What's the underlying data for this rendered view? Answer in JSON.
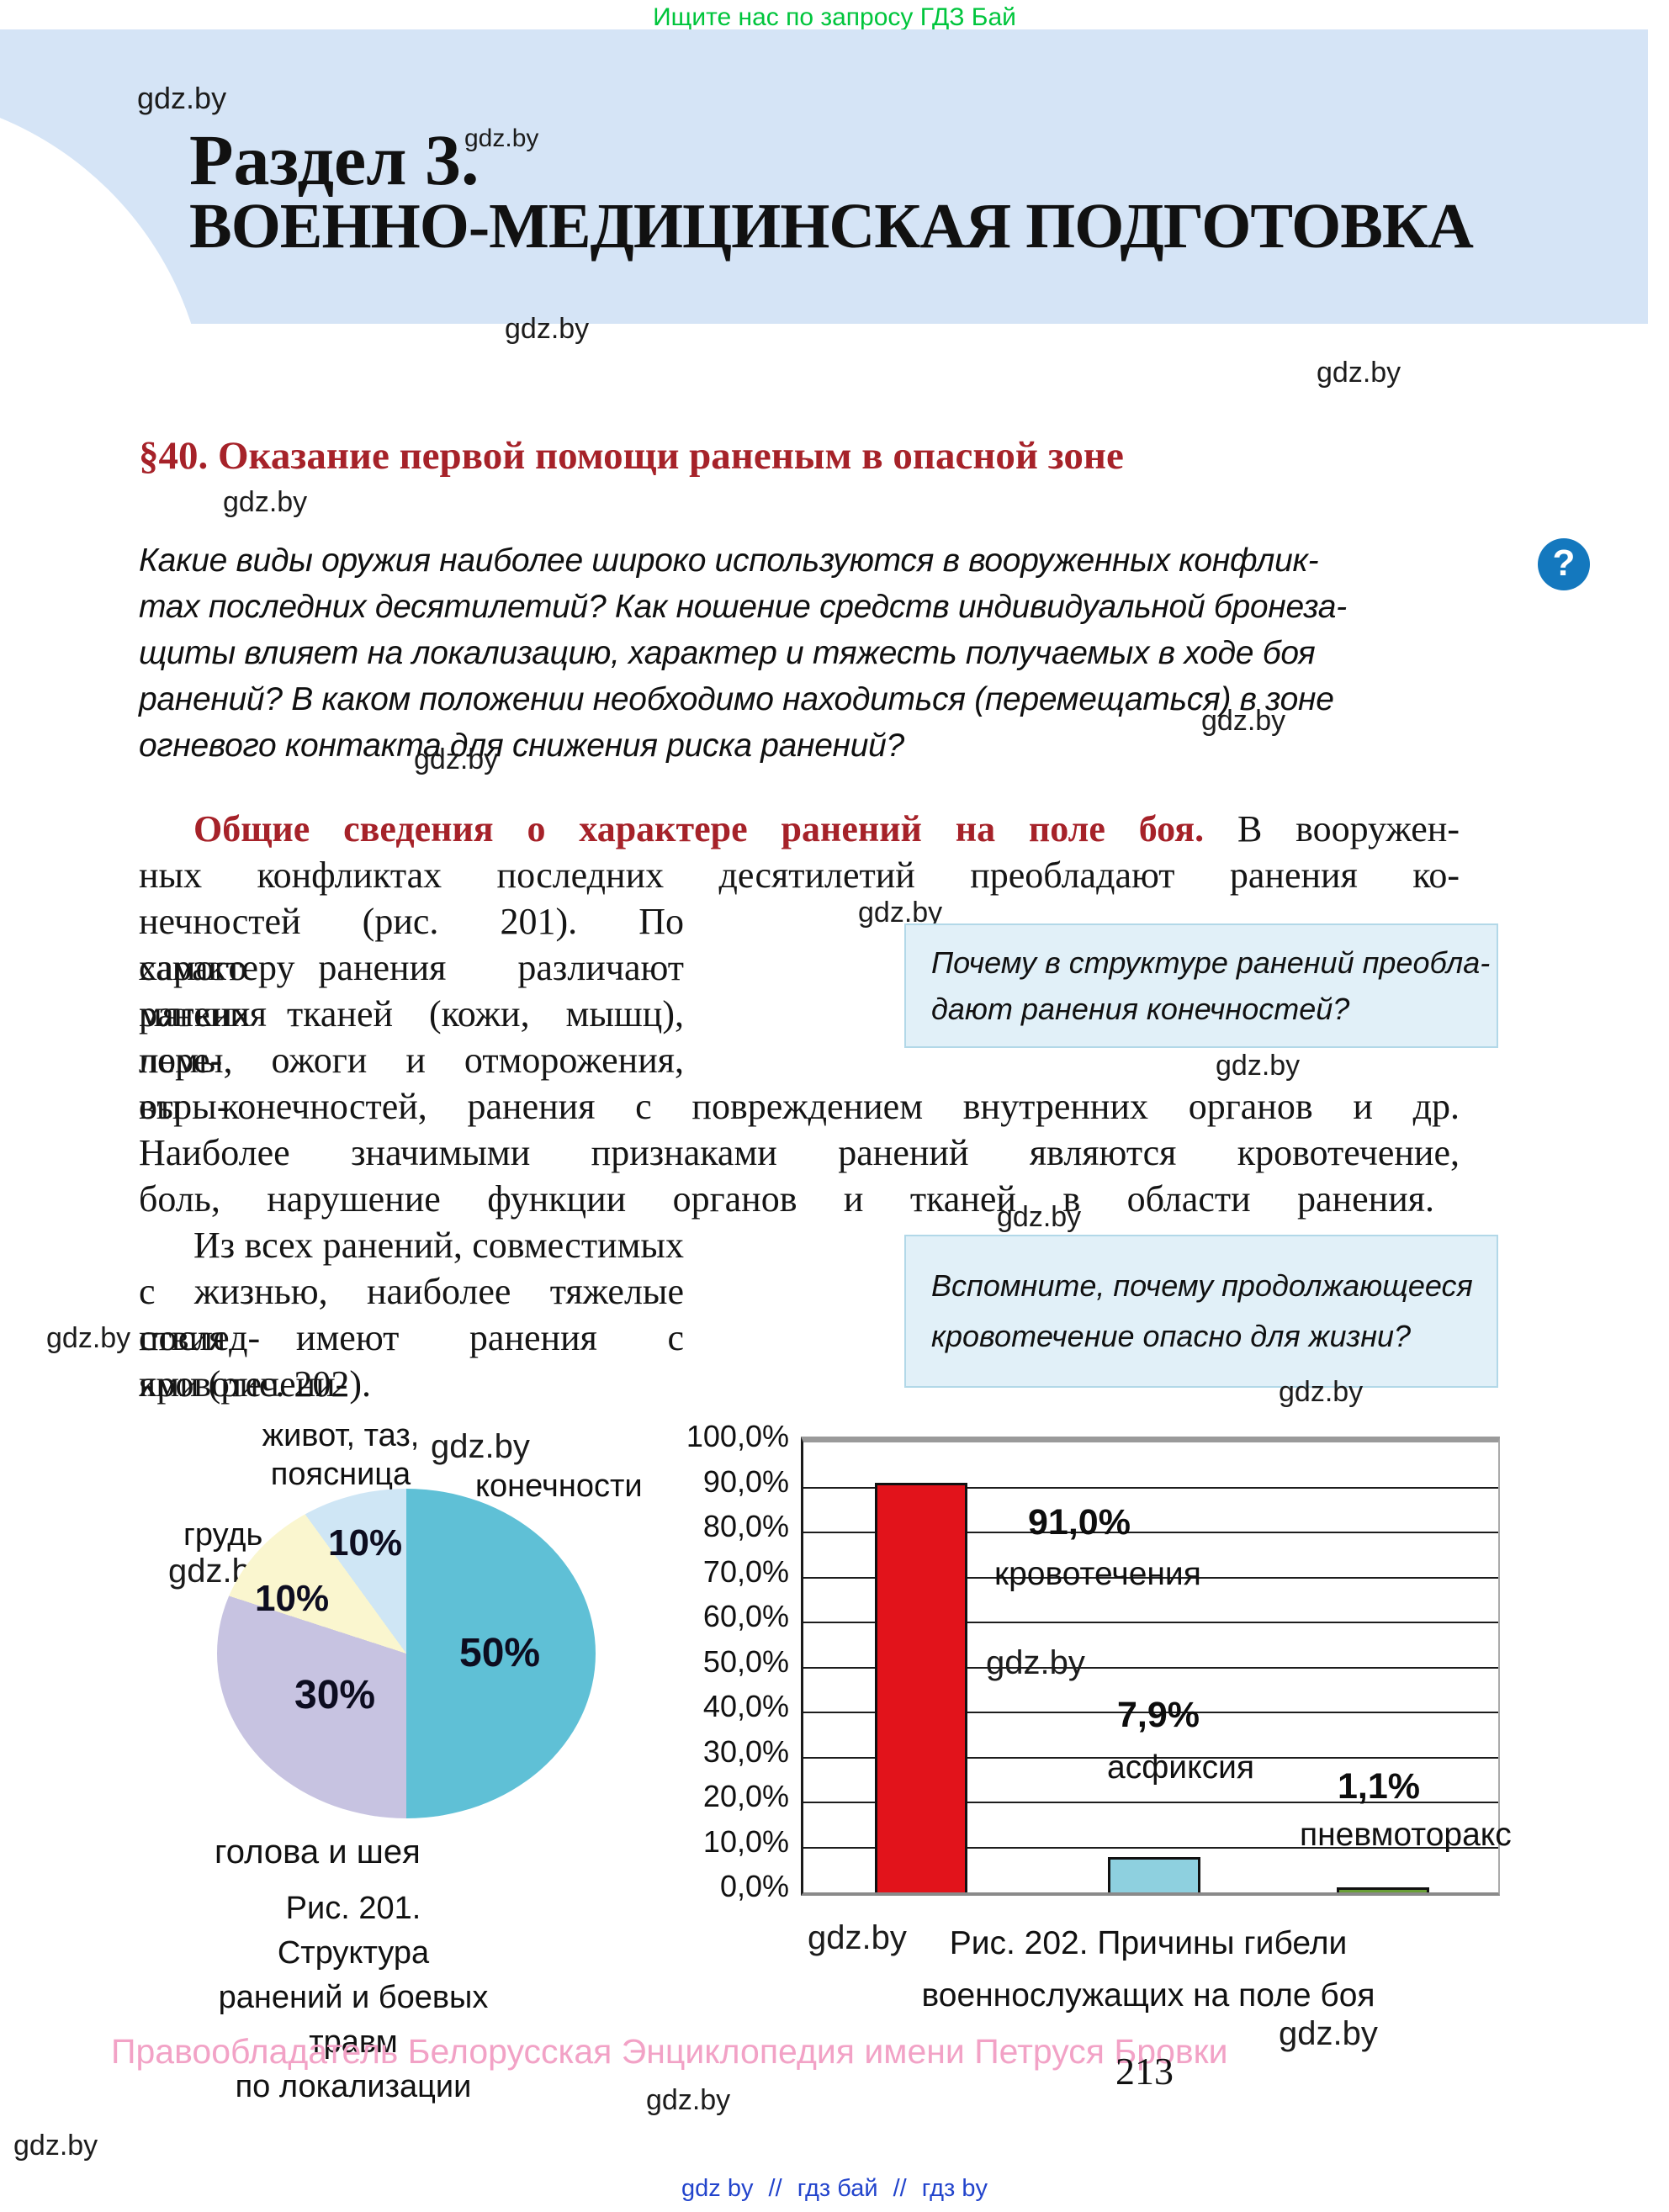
{
  "page": {
    "promo_banner": "Ищите нас по запросу ГДЗ Бай",
    "watermark": "gdz.by",
    "page_number": "213",
    "copyright": "Правообладатель Белорусская Энциклопедия имени Петруся Бровки",
    "footer_links": [
      "gdz by",
      "гдз бай",
      "гдз by"
    ],
    "footer_separator": "//"
  },
  "header": {
    "section_label": "Раздел 3.",
    "section_title": "ВОЕННО-МЕДИЦИНСКАЯ ПОДГОТОВКА"
  },
  "paragraph_title": "§40. Оказание первой помощи раненым в опасной зоне",
  "help_icon_glyph": "?",
  "intro": {
    "lines": [
      "Какие виды оружия наиболее широко используются в вооруженных конфлик-",
      "тах последних десятилетий? Как ношение средств индивидуальной бронеза-",
      "щиты влияет на локализацию, характер и тяжесть получаемых в ходе боя",
      "ранений? В каком положении необходимо находиться (перемещаться) в зоне",
      "огневого контакта для снижения риска ранений?"
    ]
  },
  "body": {
    "lead_bold": "Общие сведения о характере ранений на поле боя.",
    "lead_rest": "В вооружен-",
    "lines": [
      "ных конфликтах последних десятилетий преобладают ранения ко-",
      "нечностей (рис. 201). По характеру",
      "самого ранения различают ранения",
      "мягких тканей (кожи, мышц), пере-",
      "ломы, ожоги и отморожения, отры-",
      "вы конечностей, ранения с повреждением внутренних органов и др.",
      "Наиболее значимыми признаками ранений являются кровотечение,",
      "боль, нарушение функции органов и тканей в области ранения.",
      "Из всех ранений, совместимых",
      "с жизнью, наиболее тяжелые послед-",
      "ствия имеют ранения с кровотечени-",
      "ями (рис. 202)."
    ]
  },
  "callouts": [
    {
      "line1": "Почему в структуре ранений преобла-",
      "line2": "дают ранения конечностей?"
    },
    {
      "line1": "Вспомните, почему продолжающееся",
      "line2": "кровотечение опасно для жизни?"
    }
  ],
  "chart_data": [
    {
      "type": "pie",
      "title": "Рис. 201. Структура ранений и боевых травм по локализации",
      "slices": [
        {
          "label": "конечности",
          "value": 50,
          "color": "#5fc0d6"
        },
        {
          "label": "голова и шея",
          "value": 30,
          "color": "#c7c3e1"
        },
        {
          "label": "грудь",
          "value": 10,
          "color": "#faf6cf"
        },
        {
          "label": "живот, таз, поясница",
          "value": 10,
          "color": "#cfe6f5"
        }
      ],
      "value_labels": [
        "50%",
        "30%",
        "10%",
        "10%"
      ],
      "start_angle_deg": 0,
      "direction": "clockwise",
      "legend_position": "around-labels"
    },
    {
      "type": "bar",
      "title": "Рис. 202. Причины гибели военнослужащих на поле боя",
      "categories": [
        "кровотечения",
        "асфиксия",
        "пневмоторакс"
      ],
      "values": [
        91.0,
        7.9,
        1.1
      ],
      "value_labels": [
        "91,0%",
        "7,9%",
        "1,1%"
      ],
      "colors": [
        "#e2131b",
        "#8ed0df",
        "#699f37"
      ],
      "ylim": [
        0,
        100
      ],
      "ytick_step": 10,
      "ytick_labels": [
        "0,0%",
        "10,0%",
        "20,0%",
        "30,0%",
        "40,0%",
        "50,0%",
        "60,0%",
        "70,0%",
        "80,0%",
        "90,0%",
        "100,0%"
      ],
      "grid": true
    }
  ],
  "fig201": {
    "abdomen_line1": "живот, таз,",
    "abdomen_line2": "поясница",
    "caption": [
      "Рис. 201. Структура",
      "ранений и боевых травм",
      "по локализации"
    ]
  },
  "fig202": {
    "caption": [
      "Рис. 202. Причины гибели",
      "военнослужащих на поле боя"
    ]
  },
  "colors": {
    "header_bg": "#d5e4f6",
    "accent_red": "#a62229",
    "callout_bg": "#e1f0f8",
    "callout_border": "#b2d8e8",
    "banner_green": "#00c53c",
    "help_icon_blue": "#1478be",
    "copyright_pink": "#f2a2c6",
    "link_blue": "#2244cc"
  }
}
